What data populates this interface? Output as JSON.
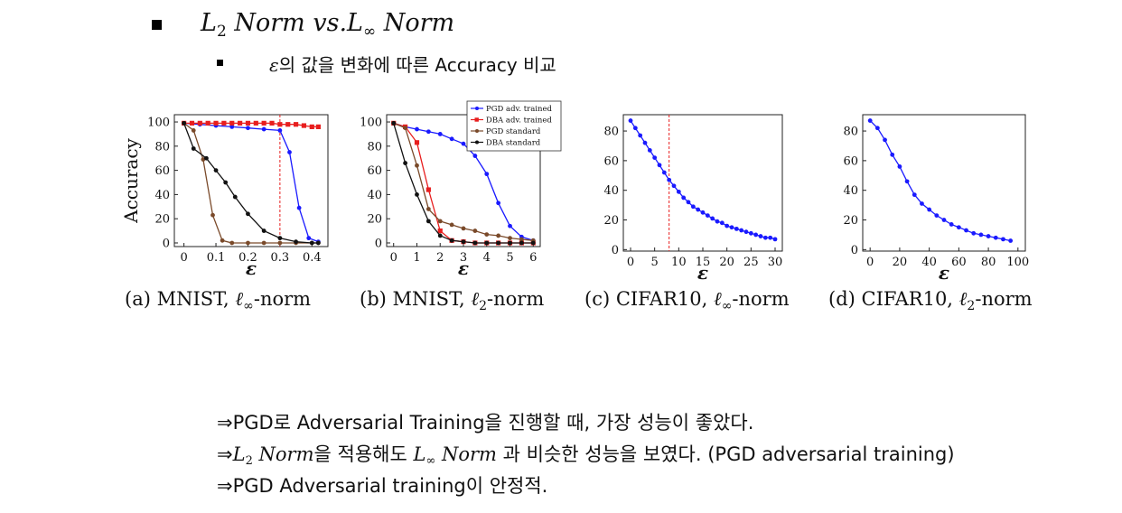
{
  "header": {
    "title_l2": "L",
    "title_l2_sub": "2",
    "title_l2_word": "Norm",
    "title_vs": "vs.",
    "title_linf": "L",
    "title_linf_sub": "∞",
    "title_linf_word": "Norm",
    "subtitle_eps": "ε",
    "subtitle_text": "의 값을 변화에 따른 Accuracy 비교"
  },
  "notes": {
    "n1_arrow": "⇒",
    "n1_text": "PGD로 Adversarial Training을 진행할 때, 가장 성능이 좋았다.",
    "n2_arrow": "⇒",
    "n2_l": "L",
    "n2_l_sub": "2",
    "n2_norm": "Norm",
    "n2_mid": "을 적용해도",
    "n2_linf": "L",
    "n2_linf_sub": "∞",
    "n2_norm2": "Norm",
    "n2_end": "과 비슷한 성능을 보였다. (PGD adversarial training)",
    "n3_arrow": "⇒",
    "n3_text": "PGD Adversarial training이 안정적."
  },
  "chart_data": [
    {
      "type": "line",
      "caption_prefix": "(a) MNIST,",
      "caption_norm": "ℓ",
      "caption_sub": "∞",
      "caption_suffix": "-norm",
      "xlabel": "ε",
      "ylabel": "Accuracy",
      "xlim": [
        -0.03,
        0.45
      ],
      "ylim": [
        -3,
        106
      ],
      "xticks": [
        0,
        0.1,
        0.2,
        0.3,
        0.4
      ],
      "xtick_labels": [
        "0",
        "0.1",
        "0.2",
        "0.3",
        "0.4"
      ],
      "yticks": [
        0,
        20,
        40,
        60,
        80,
        100
      ],
      "ytick_labels": [
        "0",
        "20",
        "40",
        "60",
        "80",
        "100"
      ],
      "vline": 0.3,
      "series": [
        {
          "name": "PGD adv. trained",
          "color": "#1a1aff",
          "marker": "circle",
          "x": [
            0,
            0.05,
            0.1,
            0.15,
            0.2,
            0.25,
            0.3,
            0.33,
            0.36,
            0.39,
            0.42
          ],
          "values": [
            99,
            98,
            97,
            96,
            95,
            94,
            93,
            75,
            29,
            4,
            1
          ]
        },
        {
          "name": "DBA adv. trained",
          "color": "#e81e1e",
          "marker": "square",
          "x": [
            0,
            0.025,
            0.05,
            0.075,
            0.1,
            0.125,
            0.15,
            0.175,
            0.2,
            0.225,
            0.25,
            0.275,
            0.3,
            0.325,
            0.35,
            0.375,
            0.4,
            0.42
          ],
          "values": [
            99,
            99,
            99,
            99,
            99,
            99,
            99,
            99,
            99,
            99,
            99,
            99,
            98,
            98,
            98,
            97,
            96,
            96
          ]
        },
        {
          "name": "PGD standard",
          "color": "#7a4a2a",
          "marker": "circle",
          "x": [
            0,
            0.03,
            0.06,
            0.09,
            0.12,
            0.15,
            0.2,
            0.25,
            0.3,
            0.35,
            0.4,
            0.42
          ],
          "values": [
            99,
            93,
            69,
            23,
            2,
            0,
            0,
            0,
            0,
            0,
            0,
            0
          ]
        },
        {
          "name": "DBA standard",
          "color": "#111111",
          "marker": "circle",
          "x": [
            0,
            0.03,
            0.07,
            0.1,
            0.13,
            0.16,
            0.2,
            0.25,
            0.3,
            0.35,
            0.4,
            0.42
          ],
          "values": [
            99,
            78,
            70,
            60,
            50,
            38,
            24,
            10,
            4,
            1,
            0,
            0
          ]
        }
      ]
    },
    {
      "type": "line",
      "caption_prefix": "(b) MNIST,",
      "caption_norm": "ℓ",
      "caption_sub": "2",
      "caption_suffix": "-norm",
      "xlabel": "ε",
      "ylabel": "",
      "xlim": [
        -0.3,
        6.3
      ],
      "ylim": [
        -3,
        106
      ],
      "xticks": [
        0,
        1,
        2,
        3,
        4,
        5,
        6
      ],
      "xtick_labels": [
        "0",
        "1",
        "2",
        "3",
        "4",
        "5",
        "6"
      ],
      "yticks": [
        0,
        20,
        40,
        60,
        80,
        100
      ],
      "ytick_labels": [
        "0",
        "20",
        "40",
        "60",
        "80",
        "100"
      ],
      "vline": null,
      "legend": "top-right",
      "series": [
        {
          "name": "PGD adv. trained",
          "color": "#1a1aff",
          "marker": "circle",
          "x": [
            0,
            0.5,
            1,
            1.5,
            2,
            2.5,
            3,
            3.5,
            4,
            4.5,
            5,
            5.5,
            6
          ],
          "values": [
            99,
            96,
            94,
            92,
            90,
            86,
            82,
            72,
            57,
            33,
            14,
            5,
            2
          ]
        },
        {
          "name": "DBA adv. trained",
          "color": "#e81e1e",
          "marker": "square",
          "x": [
            0,
            0.5,
            1,
            1.5,
            2,
            2.5,
            3,
            3.5,
            4,
            4.5,
            5,
            5.5,
            6
          ],
          "values": [
            99,
            96,
            83,
            44,
            10,
            2,
            1,
            0,
            0,
            0,
            0,
            0,
            0
          ]
        },
        {
          "name": "PGD standard",
          "color": "#7a4a2a",
          "marker": "circle",
          "x": [
            0,
            0.5,
            1,
            1.5,
            2,
            2.5,
            3,
            3.5,
            4,
            4.5,
            5,
            5.5,
            6
          ],
          "values": [
            99,
            95,
            64,
            28,
            18,
            15,
            12,
            10,
            7,
            6,
            4,
            3,
            2
          ]
        },
        {
          "name": "DBA standard",
          "color": "#111111",
          "marker": "circle",
          "x": [
            0,
            0.5,
            1,
            1.5,
            2,
            2.5,
            3,
            3.5,
            4,
            4.5,
            5,
            5.5,
            6
          ],
          "values": [
            99,
            66,
            40,
            18,
            6,
            2,
            1,
            0,
            0,
            0,
            0,
            0,
            0
          ]
        }
      ]
    },
    {
      "type": "line",
      "caption_prefix": "(c) CIFAR10,",
      "caption_norm": "ℓ",
      "caption_sub": "∞",
      "caption_suffix": "-norm",
      "xlabel": "ε",
      "ylabel": "",
      "xlim": [
        -1.5,
        31.5
      ],
      "ylim": [
        -1,
        91
      ],
      "xticks": [
        0,
        5,
        10,
        15,
        20,
        25,
        30
      ],
      "xtick_labels": [
        "0",
        "5",
        "10",
        "15",
        "20",
        "25",
        "30"
      ],
      "yticks": [
        0,
        20,
        40,
        60,
        80
      ],
      "ytick_labels": [
        "0",
        "20",
        "40",
        "60",
        "80"
      ],
      "vline": 8,
      "series": [
        {
          "name": "PGD adv. trained",
          "color": "#1a1aff",
          "marker": "circle",
          "x": [
            0,
            1,
            2,
            3,
            4,
            5,
            6,
            7,
            8,
            9,
            10,
            11,
            12,
            13,
            14,
            15,
            16,
            17,
            18,
            19,
            20,
            21,
            22,
            23,
            24,
            25,
            26,
            27,
            28,
            29,
            30
          ],
          "values": [
            87,
            82,
            77,
            72,
            67,
            62,
            57,
            52,
            47,
            43,
            39,
            35,
            32,
            29,
            27,
            25,
            23,
            21,
            19,
            18,
            16,
            15,
            14,
            13,
            12,
            11,
            10,
            9,
            8,
            8,
            7
          ]
        }
      ]
    },
    {
      "type": "line",
      "caption_prefix": "(d) CIFAR10,",
      "caption_norm": "ℓ",
      "caption_sub": "2",
      "caption_suffix": "-norm",
      "xlabel": "ε",
      "ylabel": "",
      "xlim": [
        -5,
        105
      ],
      "ylim": [
        -1,
        91
      ],
      "xticks": [
        0,
        20,
        40,
        60,
        80,
        100
      ],
      "xtick_labels": [
        "0",
        "20",
        "40",
        "60",
        "80",
        "100"
      ],
      "yticks": [
        0,
        20,
        40,
        60,
        80
      ],
      "ytick_labels": [
        "0",
        "20",
        "40",
        "60",
        "80"
      ],
      "vline": null,
      "series": [
        {
          "name": "PGD adv. trained",
          "color": "#1a1aff",
          "marker": "circle",
          "x": [
            0,
            5,
            10,
            15,
            20,
            25,
            30,
            35,
            40,
            45,
            50,
            55,
            60,
            65,
            70,
            75,
            80,
            85,
            90,
            95
          ],
          "values": [
            87,
            82,
            74,
            64,
            56,
            46,
            37,
            31,
            27,
            23,
            20,
            17,
            15,
            13,
            11,
            10,
            9,
            8,
            7,
            6
          ]
        }
      ]
    }
  ]
}
